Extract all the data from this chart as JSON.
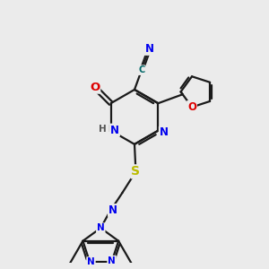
{
  "background_color": "#ebebeb",
  "bond_color": "#1a1a1a",
  "atom_colors": {
    "N": "#0000ee",
    "O": "#dd0000",
    "S": "#bbbb00",
    "C": "#1a1a1a",
    "H": "#555555",
    "CN_C": "#006666",
    "CN_N": "#0000ee"
  },
  "figsize": [
    3.0,
    3.0
  ],
  "dpi": 100
}
